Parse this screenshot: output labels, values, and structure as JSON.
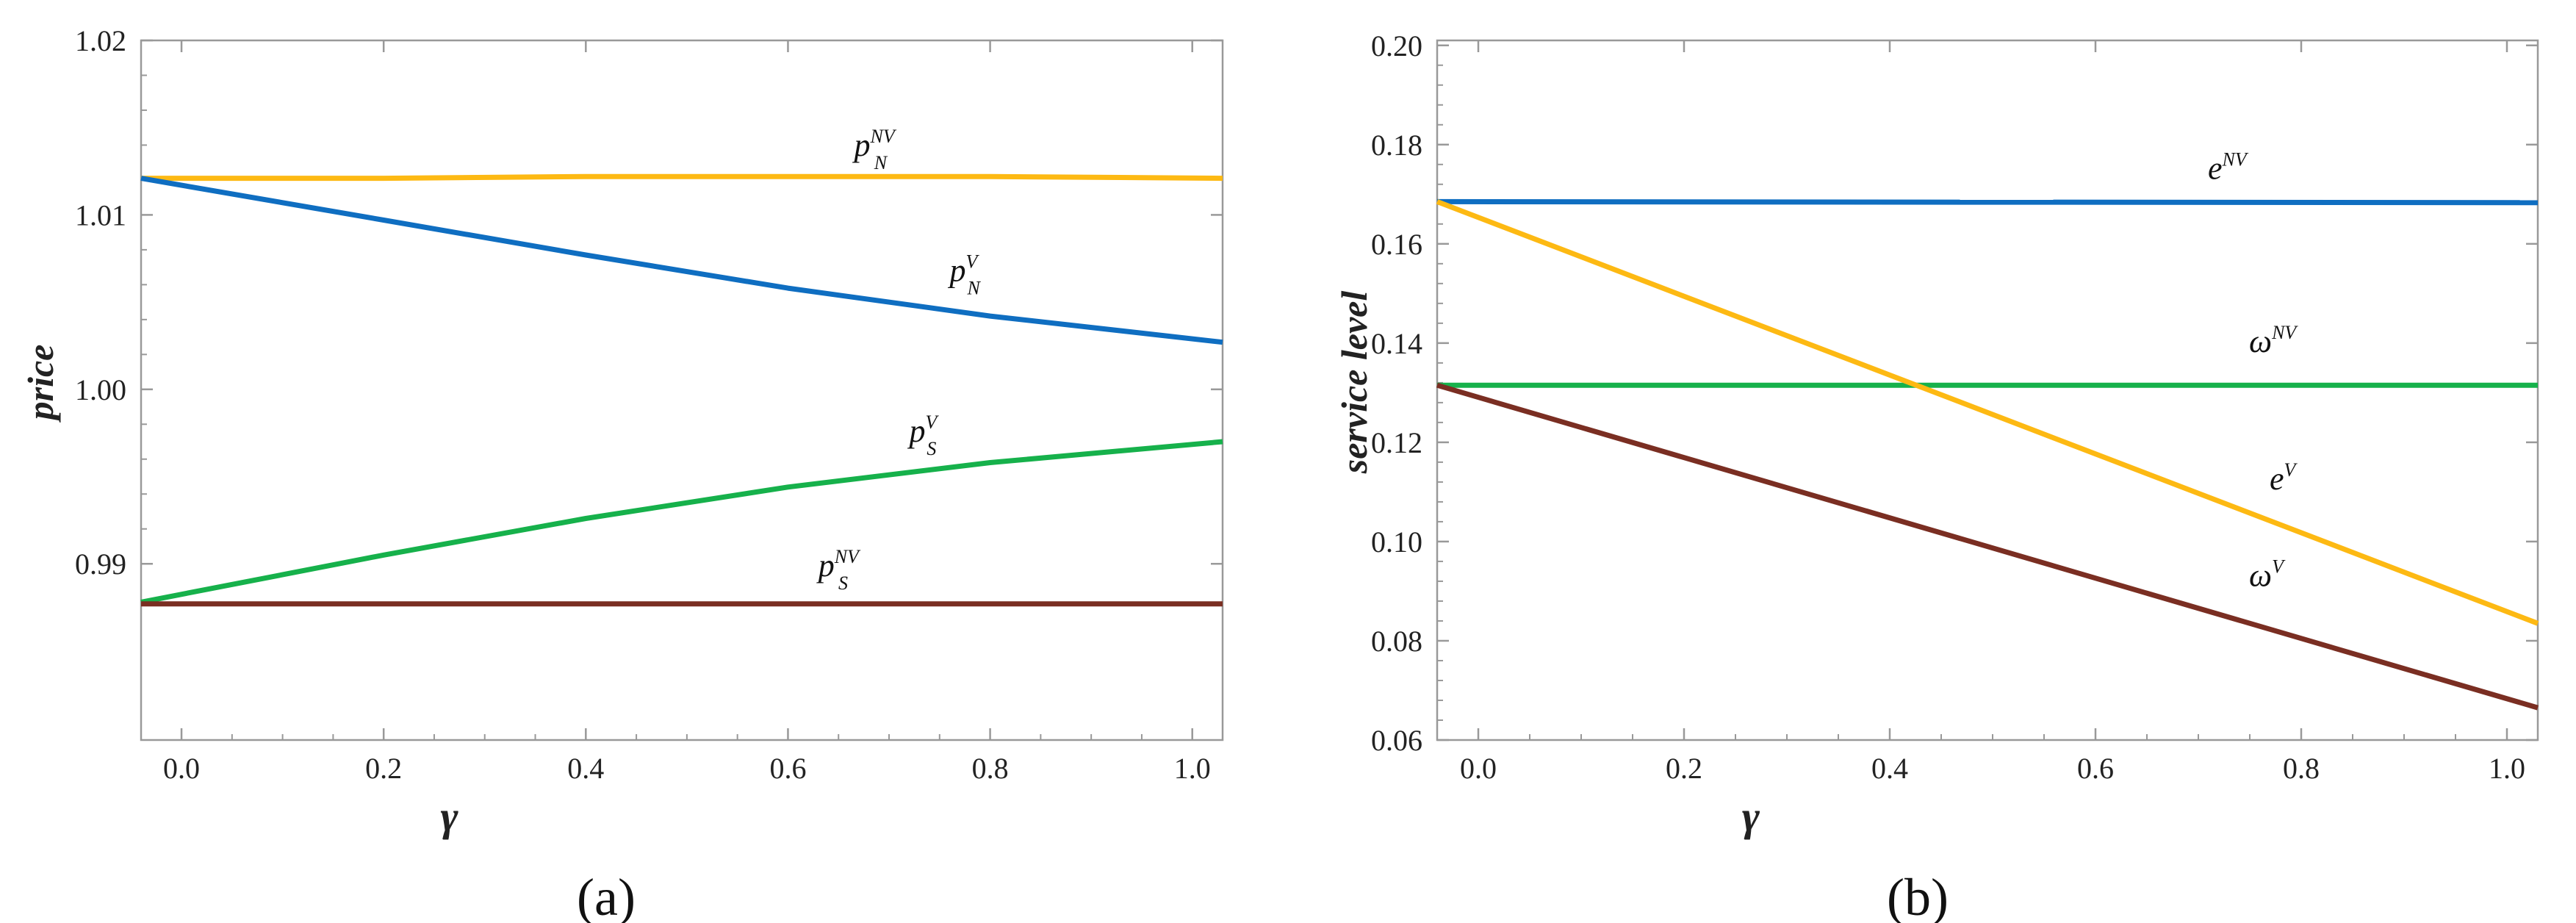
{
  "figure": {
    "colors": {
      "yellow": "#FDB913",
      "blue": "#0F6EC1",
      "green": "#16B14B",
      "brown": "#7A2E22",
      "frame": "#999999",
      "text": "#222222"
    }
  },
  "chart_data": [
    {
      "type": "line",
      "panel_label": "(a)",
      "title": "",
      "xlabel": "γ",
      "ylabel": "price",
      "xlim": [
        -0.04,
        1.03
      ],
      "ylim": [
        0.9799,
        1.02
      ],
      "grid": false,
      "x_ticks": [
        0.0,
        0.2,
        0.4,
        0.6,
        0.8,
        1.0
      ],
      "x_tick_labels": [
        "0.0",
        "0.2",
        "0.4",
        "0.6",
        "0.8",
        "1.0"
      ],
      "y_ticks": [
        0.99,
        1.0,
        1.01,
        1.02
      ],
      "y_tick_labels": [
        "0.99",
        "1.00",
        "1.01",
        "1.02"
      ],
      "x": [
        -0.04,
        0.2,
        0.4,
        0.6,
        0.8,
        1.03
      ],
      "series": [
        {
          "name": "p_N^NV",
          "label_main": "p",
          "label_sub": "N",
          "label_sup": "NV",
          "color_key": "yellow",
          "values": [
            1.0121,
            1.0121,
            1.0122,
            1.0122,
            1.0122,
            1.0121
          ],
          "label_at": 0.68
        },
        {
          "name": "p_N^V",
          "label_main": "p",
          "label_sub": "N",
          "label_sup": "V",
          "color_key": "blue",
          "values": [
            1.0121,
            1.0097,
            1.0077,
            1.0058,
            1.0042,
            1.0027
          ],
          "label_at": 0.76
        },
        {
          "name": "p_S^V",
          "label_main": "p",
          "label_sub": "S",
          "label_sup": "V",
          "color_key": "green",
          "values": [
            0.9878,
            0.9905,
            0.9926,
            0.9944,
            0.9958,
            0.997
          ],
          "label_at": 0.72
        },
        {
          "name": "p_S^NV",
          "label_main": "p",
          "label_sub": "S",
          "label_sup": "NV",
          "color_key": "brown",
          "values": [
            0.9877,
            0.9877,
            0.9877,
            0.9877,
            0.9877,
            0.9877
          ],
          "label_at": 0.63
        }
      ]
    },
    {
      "type": "line",
      "panel_label": "(b)",
      "title": "",
      "xlabel": "γ",
      "ylabel": "service level",
      "xlim": [
        -0.04,
        1.03
      ],
      "ylim": [
        0.06,
        0.201
      ],
      "grid": false,
      "x_ticks": [
        0.0,
        0.2,
        0.4,
        0.6,
        0.8,
        1.0
      ],
      "x_tick_labels": [
        "0.0",
        "0.2",
        "0.4",
        "0.6",
        "0.8",
        "1.0"
      ],
      "y_ticks": [
        0.06,
        0.08,
        0.1,
        0.12,
        0.14,
        0.16,
        0.18,
        0.2
      ],
      "y_tick_labels": [
        "0.06",
        "0.08",
        "0.10",
        "0.12",
        "0.14",
        "0.16",
        "0.18",
        "0.20"
      ],
      "x": [
        -0.04,
        1.03
      ],
      "series": [
        {
          "name": "e^NV",
          "label_main": "e",
          "label_sub": "",
          "label_sup": "NV",
          "color_key": "blue",
          "values": [
            0.1685,
            0.1683
          ],
          "label_at": 0.72
        },
        {
          "name": "ω^NV",
          "label_main": "ω",
          "label_sub": "",
          "label_sup": "NV",
          "color_key": "green",
          "values": [
            0.1315,
            0.1315
          ],
          "label_at": 0.76
        },
        {
          "name": "e^V",
          "label_main": "e",
          "label_sub": "",
          "label_sup": "V",
          "color_key": "yellow",
          "values": [
            0.1685,
            0.0835
          ],
          "label_at": 0.78
        },
        {
          "name": "ω^V",
          "label_main": "ω",
          "label_sub": "",
          "label_sup": "V",
          "color_key": "brown",
          "values": [
            0.1315,
            0.0665
          ],
          "label_at": 0.76
        }
      ]
    }
  ]
}
